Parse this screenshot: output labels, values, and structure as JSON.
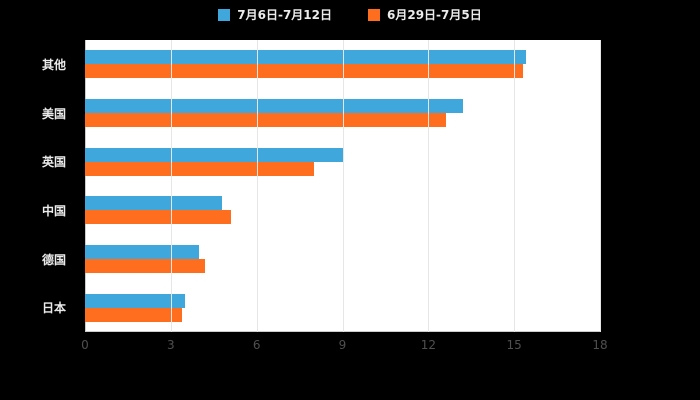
{
  "legend": {
    "items": [
      {
        "label": "7月6日-7月12日",
        "color": "#3FA7DC"
      },
      {
        "label": "6月29日-7月5日",
        "color": "#FF6E1E"
      }
    ]
  },
  "colors": {
    "background": "#000000",
    "plot_background": "#ffffff",
    "grid_line": "#e6e6e6",
    "axis_line": "#cccccc",
    "tick_label": "#4f4f4f",
    "category_label": "#ebebeb",
    "series_blue": "#3FA7DC",
    "series_orange": "#FF6E1E"
  },
  "chart_data": {
    "type": "bar",
    "orientation": "horizontal",
    "title": "",
    "xlabel": "",
    "ylabel": "",
    "categories": [
      "其他",
      "美国",
      "英国",
      "中国",
      "德国",
      "日本"
    ],
    "series": [
      {
        "name": "7月6日-7月12日",
        "color": "#3FA7DC",
        "values": [
          15.4,
          13.2,
          9.0,
          4.8,
          4.0,
          3.5
        ]
      },
      {
        "name": "6月29日-7月5日",
        "color": "#FF6E1E",
        "values": [
          15.3,
          12.6,
          8.0,
          5.1,
          4.2,
          3.4
        ]
      }
    ],
    "xlim": [
      0,
      18
    ],
    "xticks": [
      0,
      3,
      6,
      9,
      12,
      15,
      18
    ],
    "grid": true,
    "legend_position": "top"
  }
}
